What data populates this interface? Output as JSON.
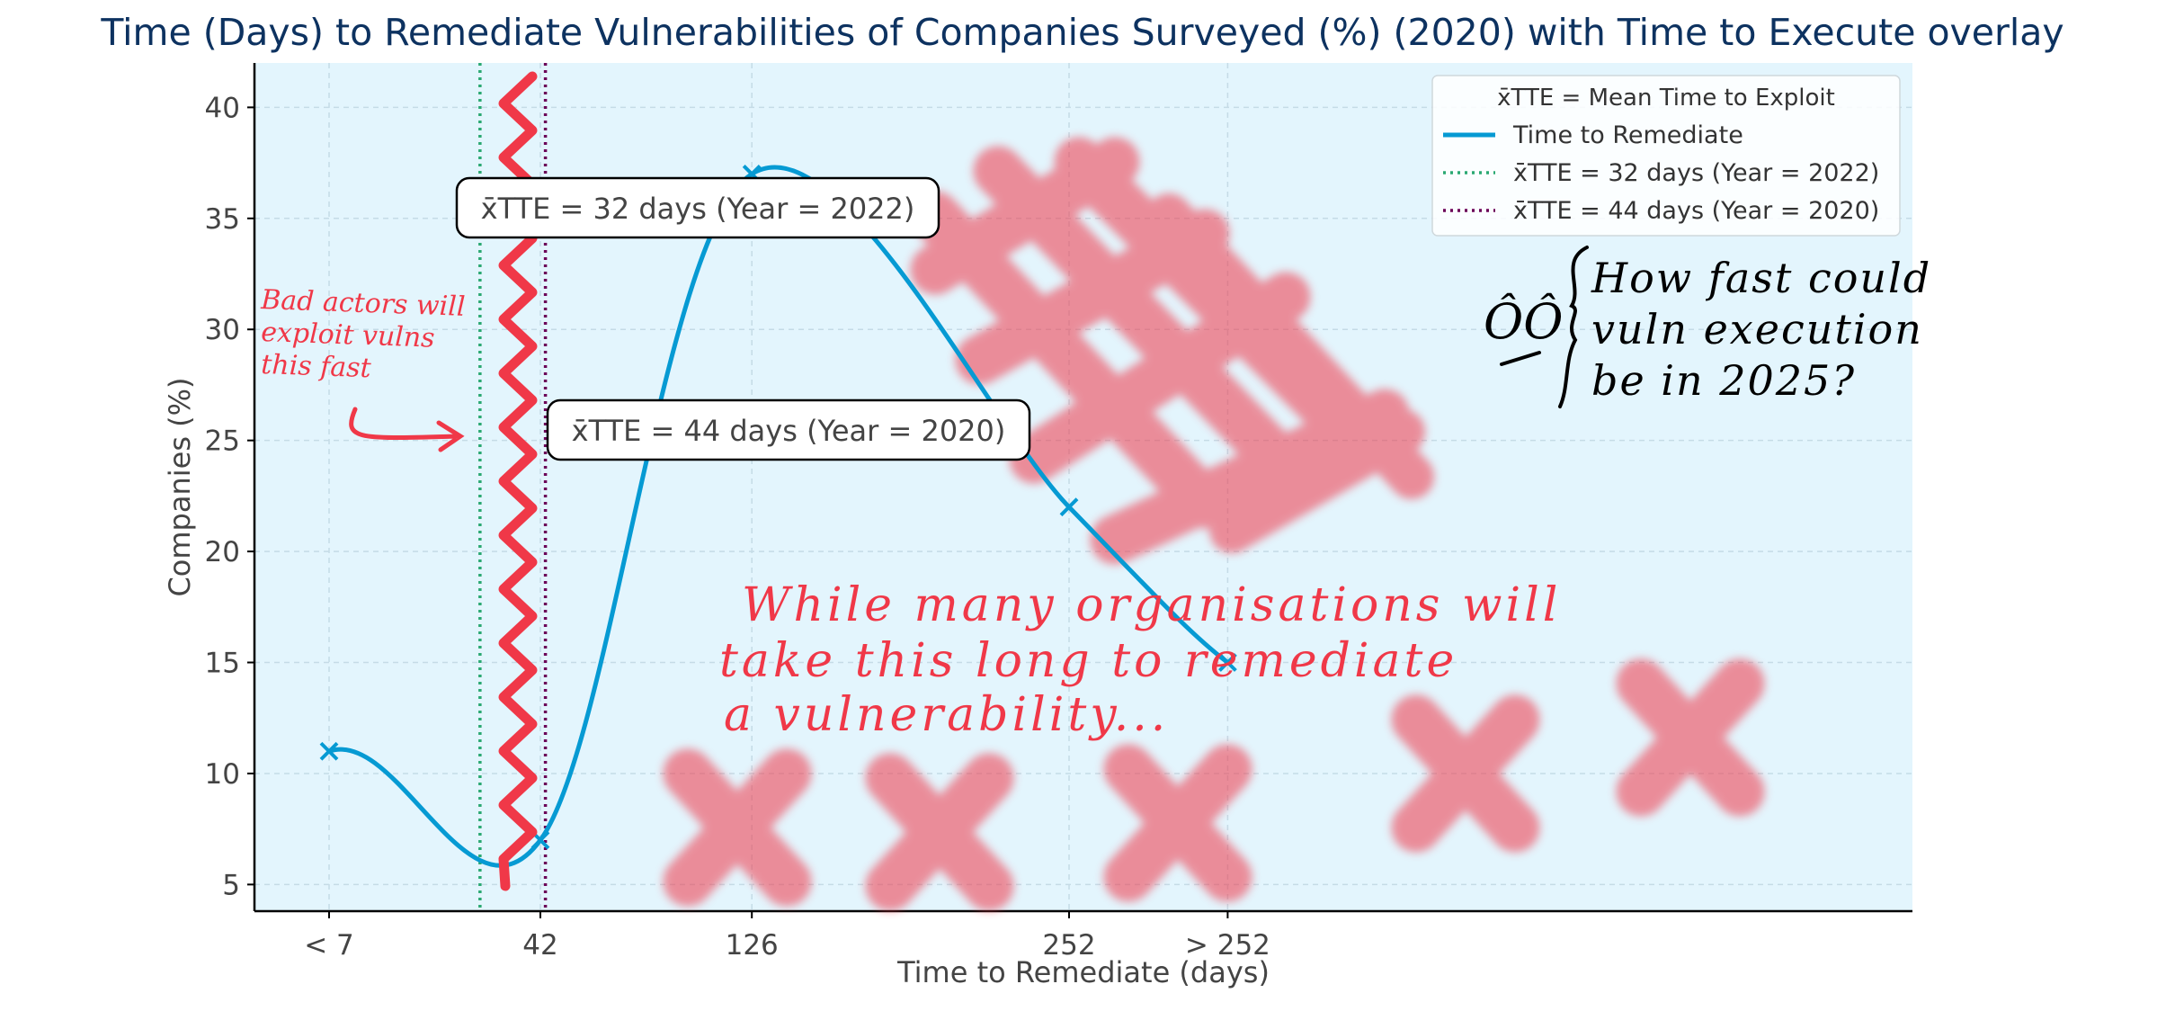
{
  "chart_data": {
    "type": "line",
    "title": "Time (Days) to Remediate Vulnerabilities of Companies Surveyed (%) (2020) with Time to Execute overlay",
    "xlabel": "Time to Remediate (days)",
    "ylabel": "Companies (%)",
    "x_tick_labels": [
      "< 7",
      "42",
      "126",
      "252",
      "> 252"
    ],
    "y_ticks": [
      5,
      10,
      15,
      20,
      25,
      30,
      35,
      40
    ],
    "ylim": [
      3.8,
      42
    ],
    "grid": true,
    "legend_position": "top-right",
    "series": [
      {
        "name": "Time to Remediate",
        "color": "#069ad3",
        "points": [
          {
            "x_label": "< 7",
            "y": 11
          },
          {
            "x_label": "42",
            "y": 7
          },
          {
            "x_label": "126",
            "y": 37
          },
          {
            "x_label": "252",
            "y": 22
          },
          {
            "x_label": "> 252",
            "y": 15
          }
        ]
      }
    ],
    "reference_lines": [
      {
        "legend": "x̄TTE = 32 days (Year = 2022)",
        "x_value": 32,
        "color": "#2aa872",
        "style": "dotted",
        "annotation": "x̄TTE = 32 days (Year = 2022)"
      },
      {
        "legend": "x̄TTE = 44 days (Year = 2020)",
        "x_value": 44,
        "color": "#6b0057",
        "style": "dotted",
        "annotation": "x̄TTE = 44 days (Year = 2020)"
      }
    ],
    "legend_title": "x̄TTE = Mean Time to Exploit",
    "handwritten_notes": [
      {
        "lines": [
          "Bad actors will",
          "exploit vulns",
          "this fast"
        ],
        "color": "#f03848"
      },
      {
        "lines": [
          "While many organisations will",
          "take this long to remediate",
          "a vulnerability..."
        ],
        "color": "#f03848"
      },
      {
        "lines": [
          "How fast could",
          "vuln execution",
          "be in 2025?"
        ],
        "color": "#000000"
      }
    ]
  },
  "colors": {
    "plot_background": "#e3f5fd",
    "title": "#0d3260",
    "grid": "#c5dbe6",
    "annotation_red": "#f03848"
  }
}
